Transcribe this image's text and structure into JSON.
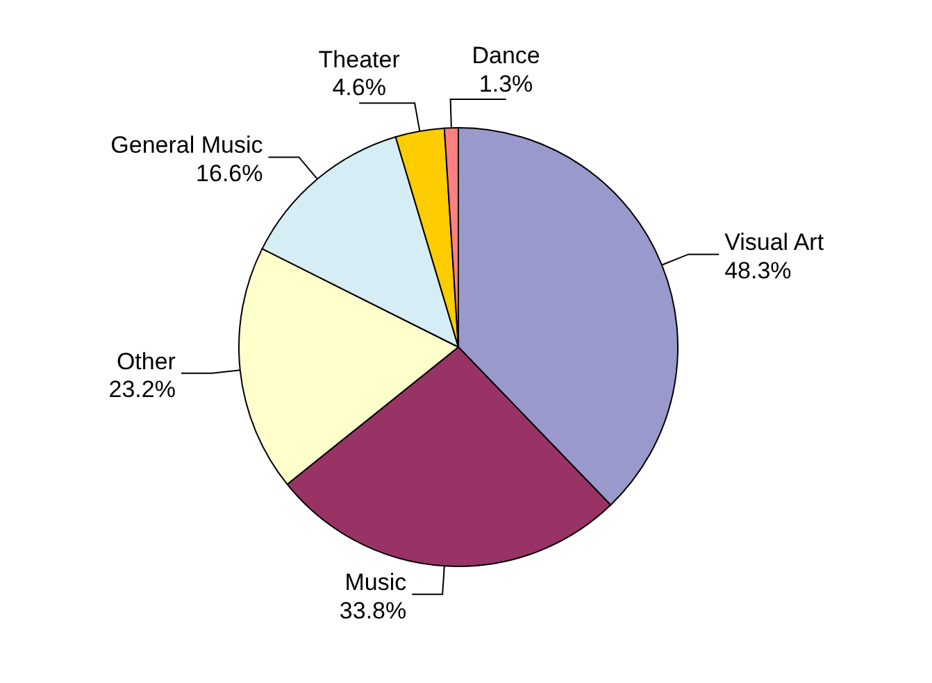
{
  "chart_data": {
    "type": "pie",
    "categories": [
      "Visual Art",
      "Music",
      "Other",
      "General Music",
      "Theater",
      "Dance"
    ],
    "values": [
      48.3,
      33.8,
      23.2,
      16.6,
      4.6,
      1.3
    ],
    "value_labels": [
      "48.3%",
      "33.8%",
      "23.2%",
      "16.6%",
      "4.6%",
      "1.3%"
    ],
    "colors": [
      "#9999cc",
      "#993366",
      "#ffffcc",
      "#d5edf4",
      "#ffcc00",
      "#ff8080"
    ]
  }
}
